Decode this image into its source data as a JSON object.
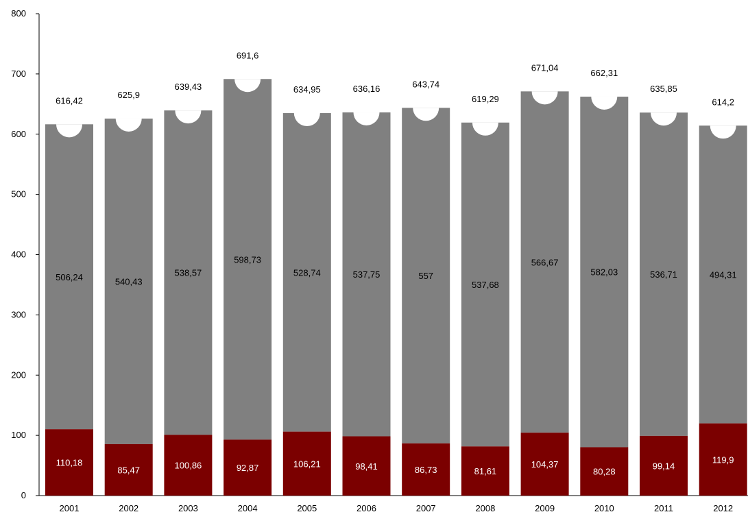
{
  "chart_data": {
    "type": "bar",
    "stacked": true,
    "categories": [
      "2001",
      "2002",
      "2003",
      "2004",
      "2005",
      "2006",
      "2007",
      "2008",
      "2009",
      "2010",
      "2011",
      "2012"
    ],
    "series": [
      {
        "color": "#7b0000",
        "values": [
          110.18,
          85.47,
          100.86,
          92.87,
          106.21,
          98.41,
          86.73,
          81.61,
          104.37,
          80.28,
          99.14,
          119.9
        ],
        "labels": [
          "110,18",
          "85,47",
          "100,86",
          "92,87",
          "106,21",
          "98,41",
          "86,73",
          "81,61",
          "104,37",
          "80,28",
          "99,14",
          "119,9"
        ]
      },
      {
        "color": "#808080",
        "values": [
          506.24,
          540.43,
          538.57,
          598.73,
          528.74,
          537.75,
          557,
          537.68,
          566.67,
          582.03,
          536.71,
          494.31
        ],
        "labels": [
          "506,24",
          "540,43",
          "538,57",
          "598,73",
          "528,74",
          "537,75",
          "557",
          "537,68",
          "566,67",
          "582,03",
          "536,71",
          "494,31"
        ]
      }
    ],
    "totals": [
      616.42,
      625.9,
      639.43,
      691.6,
      634.95,
      636.16,
      643.74,
      619.29,
      671.04,
      662.31,
      635.85,
      614.2
    ],
    "total_labels": [
      "616,42",
      "625,9",
      "639,43",
      "691,6",
      "634,95",
      "636,16",
      "643,74",
      "619,29",
      "671,04",
      "662,31",
      "635,85",
      "614,2"
    ],
    "y_ticks": [
      "0",
      "100",
      "200",
      "300",
      "400",
      "500",
      "600",
      "700",
      "800"
    ],
    "ylim": [
      0,
      800
    ],
    "grid": false,
    "legend": "none",
    "title": "",
    "xlabel": "",
    "ylabel": ""
  }
}
